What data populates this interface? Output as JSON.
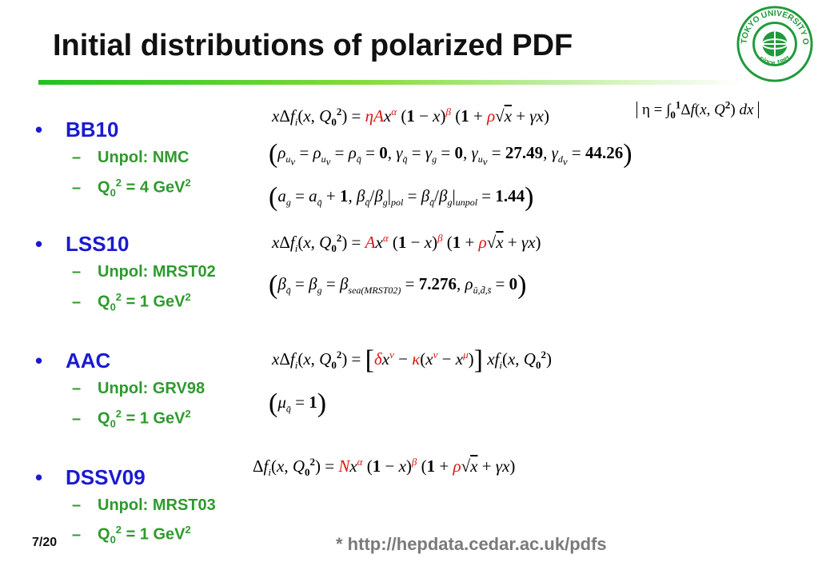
{
  "title": "Initial distributions of polarized PDF",
  "colors": {
    "bullet": "#1a1ad0",
    "sub": "#2e9a2e",
    "rule_start": "#22c022",
    "url": "#7a7a7a",
    "param": "#e01010"
  },
  "logo": {
    "icon": "university-seal",
    "text": "TOKYO UNIVERSITY OF SCIENCE",
    "year": "since 1881"
  },
  "sections": [
    {
      "name": "BB10",
      "unpol": "Unpol: NMC",
      "q_prefix": "Q",
      "q_sub": "0",
      "q_sup": "2",
      "q_value": " = 4 GeV",
      "q_unit_sup": "2"
    },
    {
      "name": "LSS10",
      "unpol": "Unpol: MRST02",
      "q_prefix": "Q",
      "q_sub": "0",
      "q_sup": "2",
      "q_value": " = 1 GeV",
      "q_unit_sup": "2"
    },
    {
      "name": "AAC",
      "unpol": "Unpol: GRV98",
      "q_prefix": "Q",
      "q_sub": "0",
      "q_sup": "2",
      "q_value": " = 1 GeV",
      "q_unit_sup": "2"
    },
    {
      "name": "DSSV09",
      "unpol": "Unpol: MRST03",
      "q_prefix": "Q",
      "q_sub": "0",
      "q_sup": "2",
      "q_value": " = 1 GeV",
      "q_unit_sup": "2"
    }
  ],
  "equations": {
    "bb10_main": "xΔf_i(x,Q_0^2) = ηAx^α (1 − x)^β (1 + ρ√x + γx)",
    "bb10_eta": "η = ∫_0^1 Δf(x,Q^2) dx",
    "bb10_params1": "ρ_uv = ρ_dv = ρ_q̄ = 0, γ_q̄ = γ_g = 0, γ_uv = 27.49, γ_dv = 44.26",
    "bb10_v1": "27.49",
    "bb10_v2": "44.26",
    "bb10_params2": "a_g = a_q̄ + 1, β_q̄/β_g|pol = β_q̄/β_g|unpol = 1.44",
    "bb10_v3": "1.44",
    "lss10_main": "xΔf_i(x,Q_0^2) = Ax^α (1 − x)^β (1 + ρ√x + γx)",
    "lss10_params": "β_q̄ = β_g = β_sea(MRST02) = 7.276, ρ_ū,d̄,s̄ = 0",
    "lss10_v1": "7.276",
    "aac_main": "xΔf_i(x,Q_0^2) = [δx^ν − κ(x^ν − x^μ)] xf_i(x,Q_0^2)",
    "aac_params": "μ_q̄ = 1",
    "dssv_main": "Δf_i(x,Q_0^2) = Nx^α (1 − x)^β (1 + ρ√x + γx)"
  },
  "page_number": "7/20",
  "source_url": "* http://hepdata.cedar.ac.uk/pdfs"
}
